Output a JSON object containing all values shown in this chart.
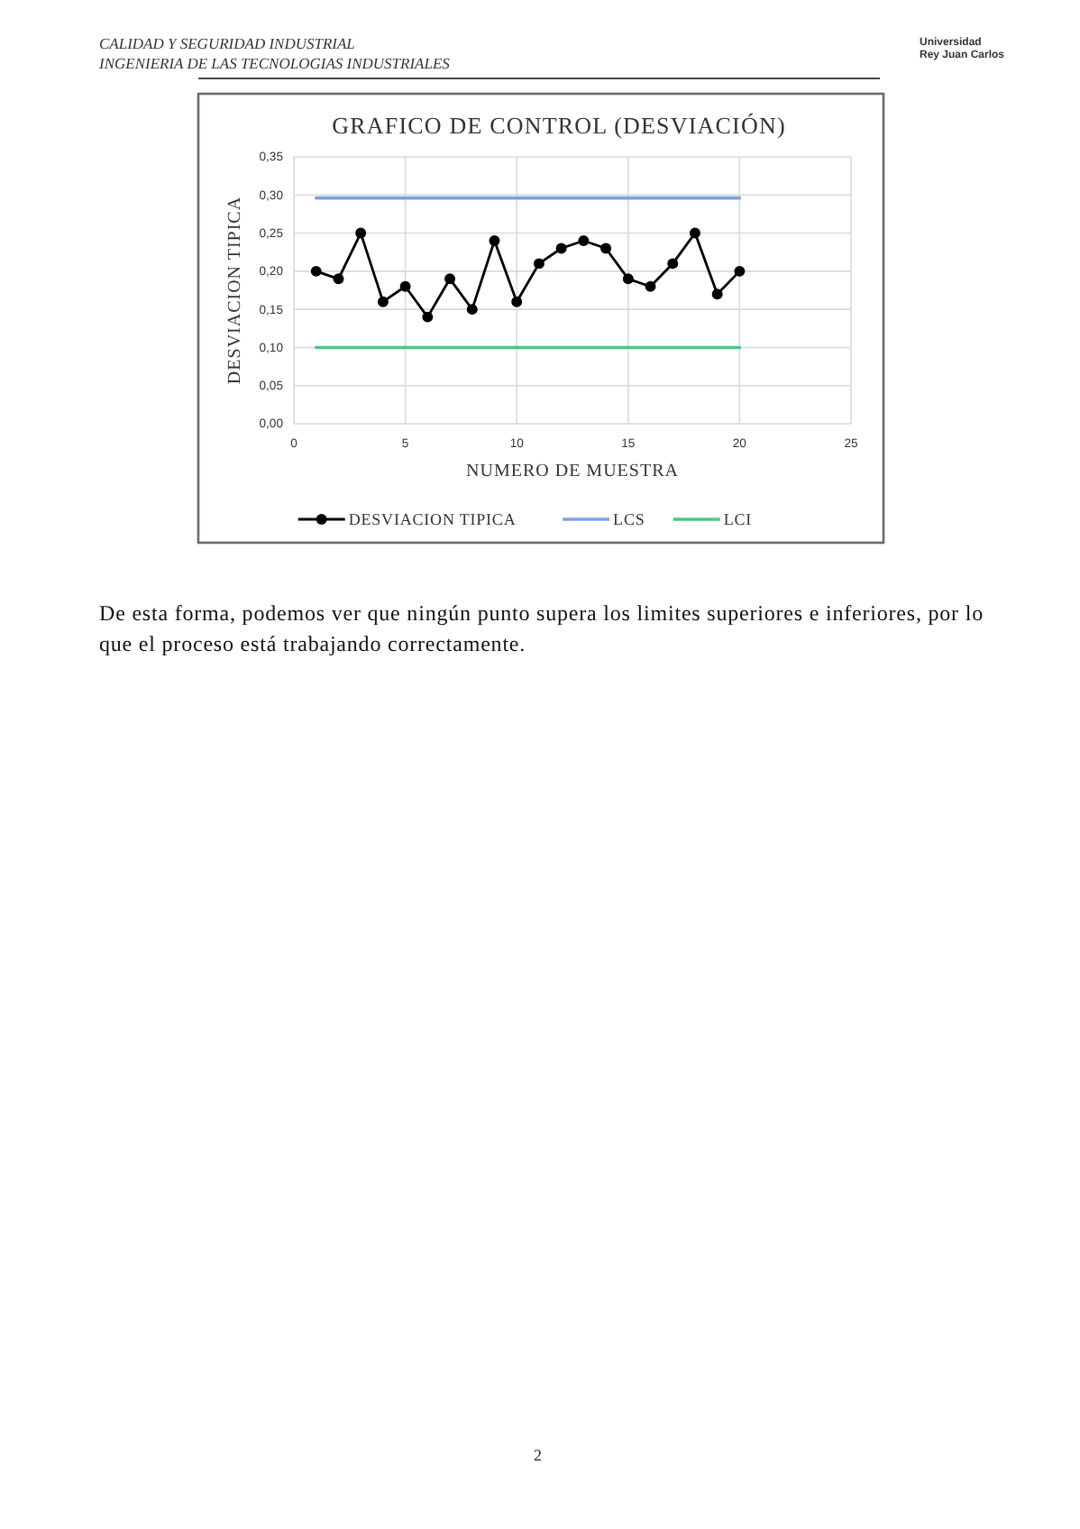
{
  "chart_data": {
    "type": "line",
    "title": "GRAFICO DE CONTROL (DESVIACIÓN)",
    "xlabel": "NUMERO DE MUESTRA",
    "ylabel": "DESVIACION TIPICA",
    "x": [
      1,
      2,
      3,
      4,
      5,
      6,
      7,
      8,
      9,
      10,
      11,
      12,
      13,
      14,
      15,
      16,
      17,
      18,
      19,
      20
    ],
    "series": [
      {
        "name": "DESVIACION TIPICA",
        "color": "#000000",
        "marker": "circle",
        "values": [
          0.2,
          0.19,
          0.25,
          0.16,
          0.18,
          0.14,
          0.19,
          0.15,
          0.24,
          0.16,
          0.21,
          0.23,
          0.24,
          0.23,
          0.19,
          0.18,
          0.21,
          0.25,
          0.17,
          0.2
        ]
      },
      {
        "name": "LCS",
        "color": "#7f9fdc",
        "marker": "none",
        "values": [
          0.296,
          0.296,
          0.296,
          0.296,
          0.296,
          0.296,
          0.296,
          0.296,
          0.296,
          0.296,
          0.296,
          0.296,
          0.296,
          0.296,
          0.296,
          0.296,
          0.296,
          0.296,
          0.296,
          0.296
        ]
      },
      {
        "name": "LCI",
        "color": "#4fc77c",
        "marker": "none",
        "values": [
          0.1,
          0.1,
          0.1,
          0.1,
          0.1,
          0.1,
          0.1,
          0.1,
          0.1,
          0.1,
          0.1,
          0.1,
          0.1,
          0.1,
          0.1,
          0.1,
          0.1,
          0.1,
          0.1,
          0.1
        ]
      }
    ],
    "xlim": [
      0,
      25
    ],
    "xticks": [
      0,
      5,
      10,
      15,
      20,
      25
    ],
    "ylim": [
      0,
      0.35
    ],
    "yticks": [
      {
        "value": 0,
        "label": "0,00"
      },
      {
        "value": 0.05,
        "label": "0,05"
      },
      {
        "value": 0.1,
        "label": "0,10"
      },
      {
        "value": 0.15,
        "label": "0,15"
      },
      {
        "value": 0.2,
        "label": "0,20"
      },
      {
        "value": 0.25,
        "label": "0,25"
      },
      {
        "value": 0.3,
        "label": "0,30"
      },
      {
        "value": 0.35,
        "label": "0,35"
      }
    ],
    "grid": true,
    "legend": "bottom",
    "line_style": "solid",
    "annotations": [
      "CALIDAD Y SEGURIDAD INDUSTRIAL",
      "INGENIERIA DE LAS TECNOLOGIAS INDUSTRIALES",
      "Universidad",
      "Rey Juan Carlos",
      "De esta forma, podemos ver que ningún punto supera los limites superiores e inferiores, por lo que el proceso está trabajando correctamente.",
      "2"
    ]
  }
}
